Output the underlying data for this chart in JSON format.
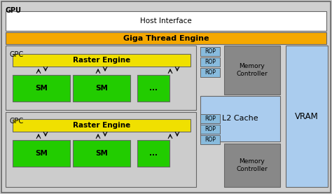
{
  "fig_width": 4.74,
  "fig_height": 2.77,
  "dpi": 100,
  "bg_gpu": "#d0d0d0",
  "color_host": "#ffffff",
  "color_giga": "#f5a800",
  "color_raster": "#f0e000",
  "color_sm": "#22cc00",
  "color_rop": "#88bbdd",
  "color_memory_ctrl": "#888888",
  "color_l2": "#aaccee",
  "color_vram": "#aaccee",
  "color_gpc": "#cccccc",
  "color_border": "#666666",
  "title_gpu": "GPU",
  "title_gpc": "GPC",
  "label_host": "Host Interface",
  "label_giga": "Giga Thread Engine",
  "label_raster": "Raster Engine",
  "label_sm": "SM",
  "label_sm_dot": "...",
  "label_rop": "ROP",
  "label_memory": "Memory\nController",
  "label_l2": "L2 Cache",
  "label_vram": "VRAM"
}
